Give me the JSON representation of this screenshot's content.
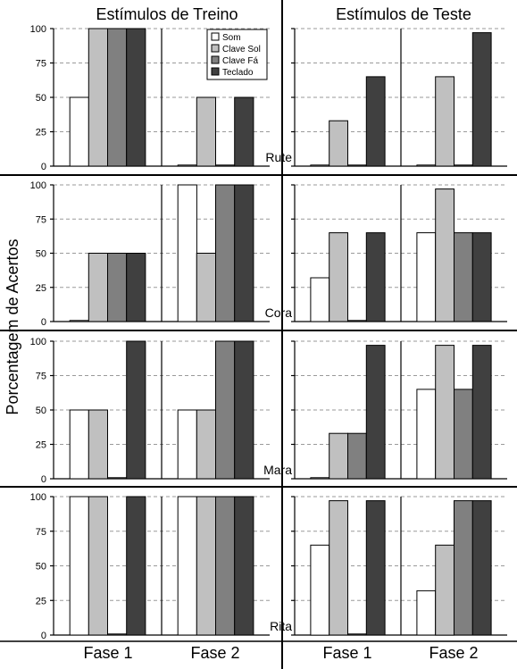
{
  "chart_data": {
    "type": "bar",
    "ylabel": "Porcentagem de Acertos",
    "column_titles": [
      "Estímulos de Treino",
      "Estímulos de Teste"
    ],
    "phases": [
      "Fase 1",
      "Fase 2"
    ],
    "series": [
      {
        "name": "Som",
        "color": "#ffffff"
      },
      {
        "name": "Clave Sol",
        "color": "#c0c0c0"
      },
      {
        "name": "Clave Fá",
        "color": "#808080"
      },
      {
        "name": "Teclado",
        "color": "#404040"
      }
    ],
    "ylim": [
      0,
      100
    ],
    "yticks": [
      "0",
      "25",
      "50",
      "75",
      "100"
    ],
    "legend_position": "top-right of Estímulos de Treino, Fase 2 (Rute)",
    "participants": [
      {
        "name": "Rute",
        "treino": {
          "Fase 1": [
            50,
            100,
            100,
            100
          ],
          "Fase 2": [
            0,
            50,
            0,
            50
          ]
        },
        "teste": {
          "Fase 1": [
            0,
            33,
            0,
            65
          ],
          "Fase 2": [
            0,
            65,
            0,
            97
          ]
        }
      },
      {
        "name": "Cora",
        "treino": {
          "Fase 1": [
            0,
            50,
            50,
            50
          ],
          "Fase 2": [
            100,
            50,
            100,
            100
          ]
        },
        "teste": {
          "Fase 1": [
            32,
            65,
            0,
            65
          ],
          "Fase 2": [
            65,
            97,
            65,
            65
          ]
        }
      },
      {
        "name": "Mara",
        "treino": {
          "Fase 1": [
            50,
            50,
            0,
            100
          ],
          "Fase 2": [
            50,
            50,
            100,
            100
          ]
        },
        "teste": {
          "Fase 1": [
            0,
            33,
            33,
            97
          ],
          "Fase 2": [
            65,
            97,
            65,
            97
          ]
        }
      },
      {
        "name": "Rita",
        "treino": {
          "Fase 1": [
            100,
            100,
            0,
            100
          ],
          "Fase 2": [
            100,
            100,
            100,
            100
          ]
        },
        "teste": {
          "Fase 1": [
            65,
            97,
            0,
            97
          ],
          "Fase 2": [
            32,
            65,
            97,
            97
          ]
        }
      }
    ]
  }
}
